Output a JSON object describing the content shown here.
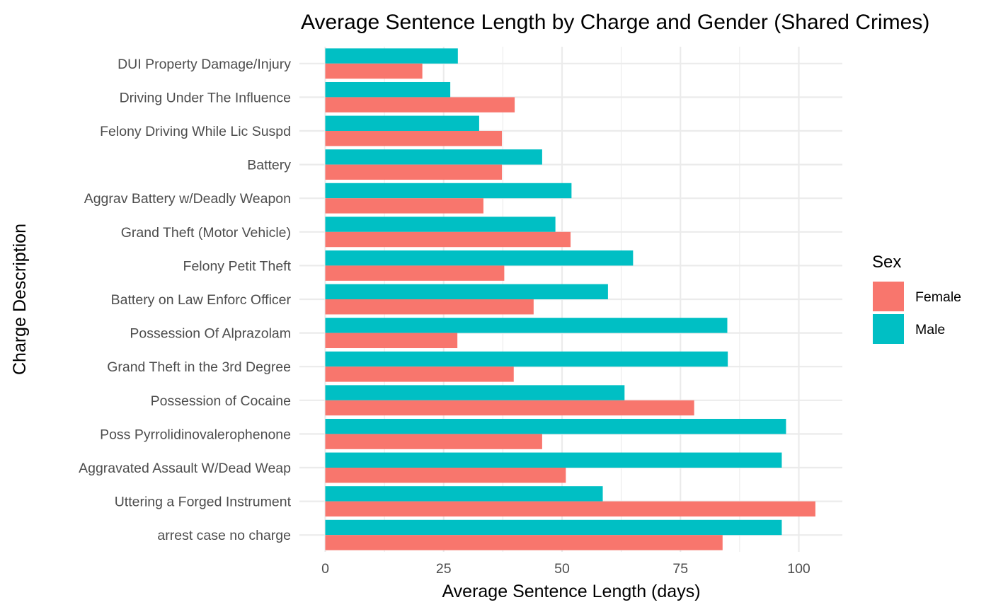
{
  "chart_data": {
    "type": "bar",
    "orientation": "horizontal",
    "title": "Average Sentence Length by Charge and Gender (Shared Crimes)",
    "xlabel": "Average Sentence Length (days)",
    "ylabel": "Charge Description",
    "xlim": [
      0,
      108
    ],
    "x_ticks": [
      0,
      25,
      50,
      75,
      100
    ],
    "grid": true,
    "legend": {
      "title": "Sex",
      "position": "right"
    },
    "categories": [
      "DUI Property Damage/Injury",
      "Driving Under The Influence",
      "Felony Driving While Lic Suspd",
      "Battery",
      "Aggrav Battery w/Deadly Weapon",
      "Grand Theft (Motor Vehicle)",
      "Felony Petit Theft",
      "Battery on Law Enforc Officer",
      "Possession Of Alprazolam",
      "Grand Theft in the 3rd Degree",
      "Possession of Cocaine",
      "Poss Pyrrolidinovalerophenone",
      "Aggravated Assault W/Dead Weap",
      "Uttering a Forged Instrument",
      "arrest case no charge"
    ],
    "series": [
      {
        "name": "Female",
        "color": "#F8766D",
        "values": [
          20.5,
          40.0,
          37.3,
          37.3,
          33.4,
          51.8,
          37.8,
          44.0,
          27.9,
          39.8,
          77.9,
          45.8,
          50.8,
          103.5,
          83.9
        ]
      },
      {
        "name": "Male",
        "color": "#00BFC4",
        "values": [
          28.0,
          26.4,
          32.5,
          45.8,
          52.0,
          48.6,
          65.0,
          59.7,
          84.9,
          85.0,
          63.2,
          97.3,
          96.4,
          58.6,
          96.4
        ]
      }
    ]
  }
}
